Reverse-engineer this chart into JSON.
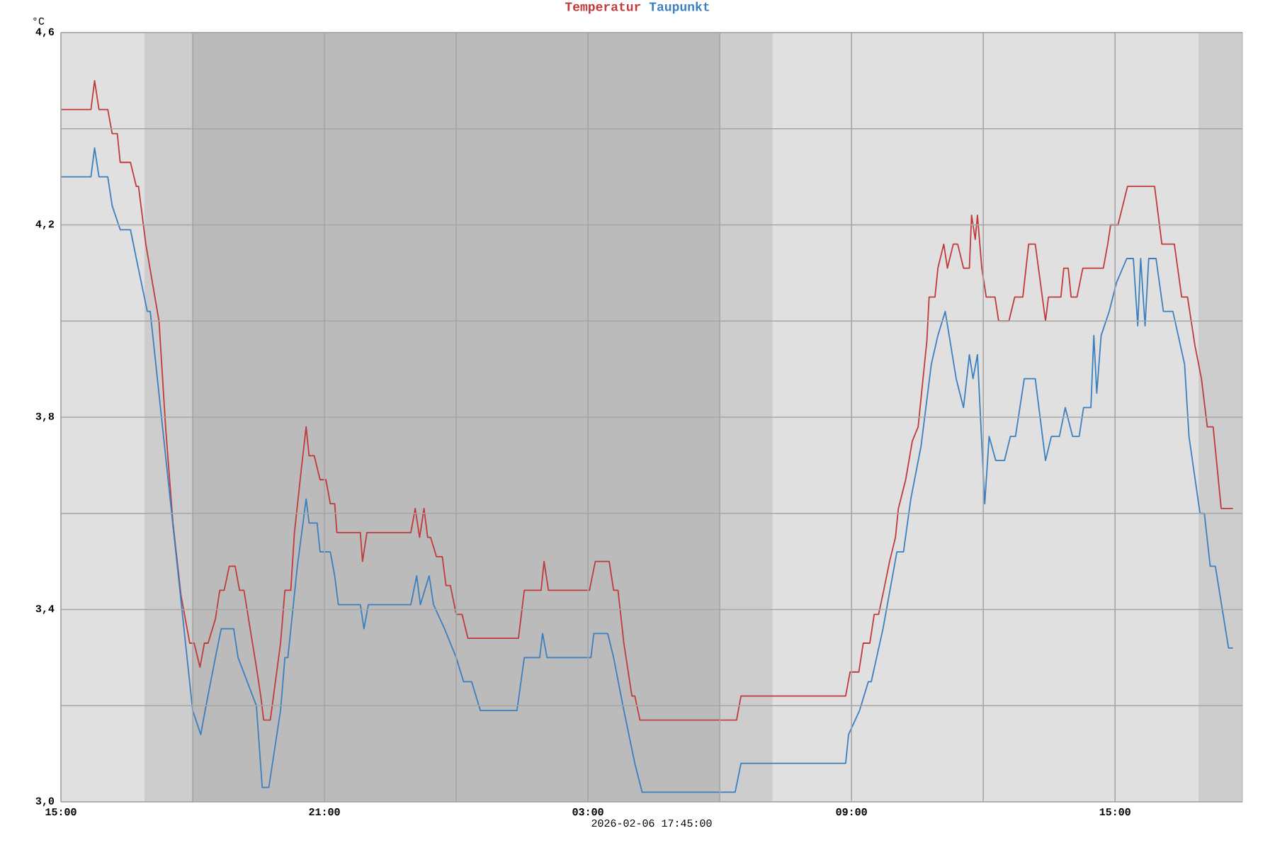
{
  "chart_data": {
    "type": "line",
    "xlabel": "2026-02-06 17:45:00",
    "ylabel": "°C",
    "legend": "top",
    "grid": true,
    "marker": "none",
    "line_style": "solid",
    "xlim": [
      "2026-02-05T15:00",
      "2026-02-06T17:54"
    ],
    "ylim": [
      3.0,
      4.6
    ],
    "xticks": [
      {
        "value": "2026-02-05T15:00",
        "label": "15:00"
      },
      {
        "value": "2026-02-05T18:00",
        "label": null
      },
      {
        "value": "2026-02-05T21:00",
        "label": "21:00"
      },
      {
        "value": "2026-02-06T00:00",
        "label": null
      },
      {
        "value": "2026-02-06T03:00",
        "label": "03:00"
      },
      {
        "value": "2026-02-06T06:00",
        "label": null
      },
      {
        "value": "2026-02-06T09:00",
        "label": "09:00"
      },
      {
        "value": "2026-02-06T12:00",
        "label": null
      },
      {
        "value": "2026-02-06T15:00",
        "label": "15:00"
      }
    ],
    "yticks": [
      {
        "value": 3.0,
        "label": "3,0"
      },
      {
        "value": 3.2,
        "label": null
      },
      {
        "value": 3.4,
        "label": "3,4"
      },
      {
        "value": 3.6,
        "label": null
      },
      {
        "value": 3.8,
        "label": "3,8"
      },
      {
        "value": 4.0,
        "label": null
      },
      {
        "value": 4.2,
        "label": "4,2"
      },
      {
        "value": 4.4,
        "label": null
      },
      {
        "value": 4.6,
        "label": "4,6"
      }
    ],
    "bands": [
      {
        "axis": "x",
        "from": "2026-02-05T16:54",
        "to": "2026-02-05T18:00",
        "color": "#cdcdcd"
      },
      {
        "axis": "x",
        "from": "2026-02-05T18:00",
        "to": "2026-02-06T06:00",
        "color": "#bbbbbb"
      },
      {
        "axis": "x",
        "from": "2026-02-06T06:00",
        "to": "2026-02-06T07:12",
        "color": "#cdcdcd"
      },
      {
        "axis": "x",
        "from": "2026-02-06T16:54",
        "to": "2026-02-06T17:54",
        "color": "#cdcdcd"
      }
    ],
    "series": [
      {
        "name": "Temperatur",
        "color": "#c0393b",
        "x": [
          "2026-02-05T15:00",
          "2026-02-05T15:41",
          "2026-02-05T15:46",
          "2026-02-05T15:52",
          "2026-02-05T16:04",
          "2026-02-05T16:10",
          "2026-02-05T16:17",
          "2026-02-05T16:21",
          "2026-02-05T16:35",
          "2026-02-05T16:43",
          "2026-02-05T16:46",
          "2026-02-05T16:56",
          "2026-02-05T17:14",
          "2026-02-05T17:23",
          "2026-02-05T17:33",
          "2026-02-05T17:44",
          "2026-02-05T17:56",
          "2026-02-05T18:02",
          "2026-02-05T18:10",
          "2026-02-05T18:16",
          "2026-02-05T18:21",
          "2026-02-05T18:31",
          "2026-02-05T18:37",
          "2026-02-05T18:43",
          "2026-02-05T18:50",
          "2026-02-05T18:58",
          "2026-02-05T19:04",
          "2026-02-05T19:10",
          "2026-02-05T19:27",
          "2026-02-05T19:33",
          "2026-02-05T19:37",
          "2026-02-05T19:46",
          "2026-02-05T20:00",
          "2026-02-05T20:06",
          "2026-02-05T20:14",
          "2026-02-05T20:19",
          "2026-02-05T20:29",
          "2026-02-05T20:35",
          "2026-02-05T20:39",
          "2026-02-05T20:46",
          "2026-02-05T20:54",
          "2026-02-05T21:02",
          "2026-02-05T21:08",
          "2026-02-05T21:14",
          "2026-02-05T21:17",
          "2026-02-05T21:49",
          "2026-02-05T21:52",
          "2026-02-05T21:58",
          "2026-02-05T22:58",
          "2026-02-05T23:04",
          "2026-02-05T23:10",
          "2026-02-05T23:16",
          "2026-02-05T23:21",
          "2026-02-05T23:25",
          "2026-02-05T23:33",
          "2026-02-05T23:41",
          "2026-02-05T23:46",
          "2026-02-05T23:52",
          "2026-02-06T00:00",
          "2026-02-06T00:08",
          "2026-02-06T00:16",
          "2026-02-06T01:25",
          "2026-02-06T01:33",
          "2026-02-06T01:56",
          "2026-02-06T02:00",
          "2026-02-06T02:06",
          "2026-02-06T03:02",
          "2026-02-06T03:10",
          "2026-02-06T03:29",
          "2026-02-06T03:35",
          "2026-02-06T03:41",
          "2026-02-06T03:49",
          "2026-02-06T04:00",
          "2026-02-06T04:04",
          "2026-02-06T04:11",
          "2026-02-06T06:23",
          "2026-02-06T06:29",
          "2026-02-06T08:52",
          "2026-02-06T08:58",
          "2026-02-06T09:10",
          "2026-02-06T09:16",
          "2026-02-06T09:25",
          "2026-02-06T09:31",
          "2026-02-06T09:37",
          "2026-02-06T09:44",
          "2026-02-06T09:52",
          "2026-02-06T10:00",
          "2026-02-06T10:04",
          "2026-02-06T10:14",
          "2026-02-06T10:23",
          "2026-02-06T10:31",
          "2026-02-06T10:37",
          "2026-02-06T10:43",
          "2026-02-06T10:46",
          "2026-02-06T10:54",
          "2026-02-06T10:58",
          "2026-02-06T11:06",
          "2026-02-06T11:11",
          "2026-02-06T11:19",
          "2026-02-06T11:25",
          "2026-02-06T11:33",
          "2026-02-06T11:41",
          "2026-02-06T11:44",
          "2026-02-06T11:49",
          "2026-02-06T11:52",
          "2026-02-06T11:58",
          "2026-02-06T12:04",
          "2026-02-06T12:16",
          "2026-02-06T12:21",
          "2026-02-06T12:35",
          "2026-02-06T12:43",
          "2026-02-06T12:54",
          "2026-02-06T13:02",
          "2026-02-06T13:11",
          "2026-02-06T13:25",
          "2026-02-06T13:29",
          "2026-02-06T13:46",
          "2026-02-06T13:50",
          "2026-02-06T13:56",
          "2026-02-06T14:00",
          "2026-02-06T14:08",
          "2026-02-06T14:16",
          "2026-02-06T14:44",
          "2026-02-06T14:50",
          "2026-02-06T14:54",
          "2026-02-06T15:04",
          "2026-02-06T15:17",
          "2026-02-06T15:54",
          "2026-02-06T16:04",
          "2026-02-06T16:21",
          "2026-02-06T16:31",
          "2026-02-06T16:39",
          "2026-02-06T16:49",
          "2026-02-06T16:58",
          "2026-02-06T17:06",
          "2026-02-06T17:14",
          "2026-02-06T17:25",
          "2026-02-06T17:33",
          "2026-02-06T17:41"
        ],
        "values": [
          4.44,
          4.44,
          4.5,
          4.44,
          4.44,
          4.39,
          4.39,
          4.33,
          4.33,
          4.28,
          4.28,
          4.16,
          4.0,
          3.78,
          3.58,
          3.43,
          3.33,
          3.33,
          3.28,
          3.33,
          3.33,
          3.38,
          3.44,
          3.44,
          3.49,
          3.49,
          3.44,
          3.44,
          3.28,
          3.22,
          3.17,
          3.17,
          3.33,
          3.44,
          3.44,
          3.56,
          3.7,
          3.78,
          3.72,
          3.72,
          3.67,
          3.67,
          3.62,
          3.62,
          3.56,
          3.56,
          3.5,
          3.56,
          3.56,
          3.61,
          3.55,
          3.61,
          3.55,
          3.55,
          3.51,
          3.51,
          3.45,
          3.45,
          3.39,
          3.39,
          3.34,
          3.34,
          3.44,
          3.44,
          3.5,
          3.44,
          3.44,
          3.5,
          3.5,
          3.44,
          3.44,
          3.33,
          3.22,
          3.22,
          3.17,
          3.17,
          3.22,
          3.22,
          3.27,
          3.27,
          3.33,
          3.33,
          3.39,
          3.39,
          3.44,
          3.5,
          3.55,
          3.61,
          3.67,
          3.75,
          3.78,
          3.87,
          3.96,
          4.05,
          4.05,
          4.11,
          4.16,
          4.11,
          4.16,
          4.16,
          4.11,
          4.11,
          4.22,
          4.17,
          4.22,
          4.11,
          4.05,
          4.05,
          4.0,
          4.0,
          4.05,
          4.05,
          4.16,
          4.16,
          4.0,
          4.05,
          4.05,
          4.11,
          4.11,
          4.05,
          4.05,
          4.11,
          4.11,
          4.16,
          4.2,
          4.2,
          4.28,
          4.28,
          4.16,
          4.16,
          4.05,
          4.05,
          3.95,
          3.88,
          3.78,
          3.78,
          3.61,
          3.61,
          3.61
        ]
      },
      {
        "name": "Taupunkt",
        "color": "#3a7fc0",
        "x": [
          "2026-02-05T15:00",
          "2026-02-05T15:41",
          "2026-02-05T15:46",
          "2026-02-05T15:52",
          "2026-02-05T16:04",
          "2026-02-05T16:10",
          "2026-02-05T16:21",
          "2026-02-05T16:35",
          "2026-02-05T16:43",
          "2026-02-05T16:58",
          "2026-02-05T17:02",
          "2026-02-05T18:00",
          "2026-02-05T18:11",
          "2026-02-05T18:17",
          "2026-02-05T18:31",
          "2026-02-05T18:39",
          "2026-02-05T18:56",
          "2026-02-05T19:02",
          "2026-02-05T19:27",
          "2026-02-05T19:35",
          "2026-02-05T19:44",
          "2026-02-05T20:00",
          "2026-02-05T20:06",
          "2026-02-05T20:10",
          "2026-02-05T20:23",
          "2026-02-05T20:35",
          "2026-02-05T20:39",
          "2026-02-05T20:50",
          "2026-02-05T20:54",
          "2026-02-05T21:08",
          "2026-02-05T21:14",
          "2026-02-05T21:19",
          "2026-02-05T21:49",
          "2026-02-05T21:54",
          "2026-02-05T22:00",
          "2026-02-05T22:58",
          "2026-02-05T23:06",
          "2026-02-05T23:11",
          "2026-02-05T23:23",
          "2026-02-05T23:29",
          "2026-02-05T23:44",
          "2026-02-06T00:00",
          "2026-02-06T00:10",
          "2026-02-06T00:21",
          "2026-02-06T00:33",
          "2026-02-06T01:23",
          "2026-02-06T01:33",
          "2026-02-06T01:54",
          "2026-02-06T01:58",
          "2026-02-06T02:04",
          "2026-02-06T03:04",
          "2026-02-06T03:08",
          "2026-02-06T03:27",
          "2026-02-06T03:35",
          "2026-02-06T03:49",
          "2026-02-06T04:04",
          "2026-02-06T04:14",
          "2026-02-06T06:21",
          "2026-02-06T06:29",
          "2026-02-06T08:52",
          "2026-02-06T08:56",
          "2026-02-06T09:11",
          "2026-02-06T09:23",
          "2026-02-06T09:27",
          "2026-02-06T09:43",
          "2026-02-06T10:02",
          "2026-02-06T10:11",
          "2026-02-06T10:21",
          "2026-02-06T10:35",
          "2026-02-06T10:49",
          "2026-02-06T10:58",
          "2026-02-06T11:08",
          "2026-02-06T11:23",
          "2026-02-06T11:33",
          "2026-02-06T11:41",
          "2026-02-06T11:46",
          "2026-02-06T11:52",
          "2026-02-06T12:02",
          "2026-02-06T12:08",
          "2026-02-06T12:17",
          "2026-02-06T12:29",
          "2026-02-06T12:37",
          "2026-02-06T12:44",
          "2026-02-06T12:56",
          "2026-02-06T13:11",
          "2026-02-06T13:25",
          "2026-02-06T13:33",
          "2026-02-06T13:44",
          "2026-02-06T13:52",
          "2026-02-06T14:02",
          "2026-02-06T14:11",
          "2026-02-06T14:17",
          "2026-02-06T14:27",
          "2026-02-06T14:31",
          "2026-02-06T14:35",
          "2026-02-06T14:41",
          "2026-02-06T14:52",
          "2026-02-06T15:02",
          "2026-02-06T15:16",
          "2026-02-06T15:25",
          "2026-02-06T15:31",
          "2026-02-06T15:35",
          "2026-02-06T15:41",
          "2026-02-06T15:46",
          "2026-02-06T15:56",
          "2026-02-06T16:06",
          "2026-02-06T16:19",
          "2026-02-06T16:35",
          "2026-02-06T16:41",
          "2026-02-06T16:56",
          "2026-02-06T17:02",
          "2026-02-06T17:10",
          "2026-02-06T17:17",
          "2026-02-06T17:35",
          "2026-02-06T17:41"
        ],
        "values": [
          4.3,
          4.3,
          4.36,
          4.3,
          4.3,
          4.24,
          4.19,
          4.19,
          4.13,
          4.02,
          4.02,
          3.19,
          3.14,
          3.19,
          3.3,
          3.36,
          3.36,
          3.3,
          3.2,
          3.03,
          3.03,
          3.19,
          3.3,
          3.3,
          3.49,
          3.63,
          3.58,
          3.58,
          3.52,
          3.52,
          3.47,
          3.41,
          3.41,
          3.36,
          3.41,
          3.41,
          3.47,
          3.41,
          3.47,
          3.41,
          3.36,
          3.3,
          3.25,
          3.25,
          3.19,
          3.19,
          3.3,
          3.3,
          3.35,
          3.3,
          3.3,
          3.35,
          3.35,
          3.3,
          3.19,
          3.08,
          3.02,
          3.02,
          3.08,
          3.08,
          3.14,
          3.19,
          3.25,
          3.25,
          3.36,
          3.52,
          3.52,
          3.63,
          3.74,
          3.91,
          3.97,
          4.02,
          3.88,
          3.82,
          3.93,
          3.88,
          3.93,
          3.62,
          3.76,
          3.71,
          3.71,
          3.76,
          3.76,
          3.88,
          3.88,
          3.71,
          3.76,
          3.76,
          3.82,
          3.76,
          3.76,
          3.82,
          3.82,
          3.97,
          3.85,
          3.97,
          4.02,
          4.08,
          4.13,
          4.13,
          3.99,
          4.13,
          3.99,
          4.13,
          4.13,
          4.02,
          4.02,
          3.91,
          3.76,
          3.6,
          3.6,
          3.49,
          3.49,
          3.32,
          3.32
        ]
      }
    ]
  }
}
